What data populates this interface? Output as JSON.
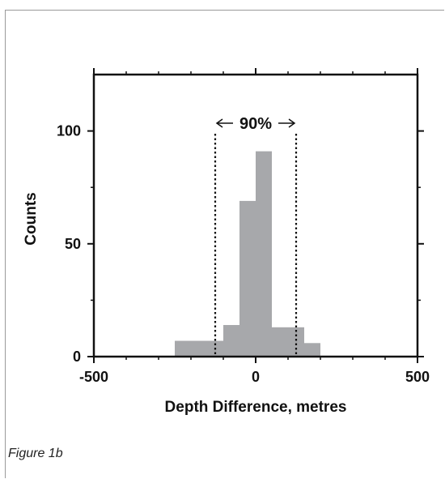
{
  "caption": "Figure 1b",
  "chart_data": {
    "type": "bar",
    "xlabel": "Depth Difference, metres",
    "ylabel": "Counts",
    "xlim": [
      -500,
      500
    ],
    "ylim": [
      0,
      125
    ],
    "x_ticks": [
      -500,
      0,
      500
    ],
    "x_tick_labels": [
      "-500",
      "0",
      "500"
    ],
    "y_ticks": [
      0,
      50,
      100
    ],
    "y_tick_labels": [
      "0",
      "50",
      "100"
    ],
    "bin_width": 50,
    "bins": [
      {
        "x0": -250,
        "x1": -200,
        "count": 7
      },
      {
        "x0": -200,
        "x1": -150,
        "count": 7
      },
      {
        "x0": -150,
        "x1": -100,
        "count": 7
      },
      {
        "x0": -100,
        "x1": -50,
        "count": 14
      },
      {
        "x0": -50,
        "x1": 0,
        "count": 69
      },
      {
        "x0": 0,
        "x1": 50,
        "count": 91
      },
      {
        "x0": 50,
        "x1": 100,
        "count": 13
      },
      {
        "x0": 100,
        "x1": 150,
        "count": 13
      },
      {
        "x0": 150,
        "x1": 200,
        "count": 6
      }
    ],
    "bar_color": "#a7a8ab",
    "interval": {
      "x0": -125,
      "x1": 125,
      "label": "90%"
    },
    "grid": false
  }
}
